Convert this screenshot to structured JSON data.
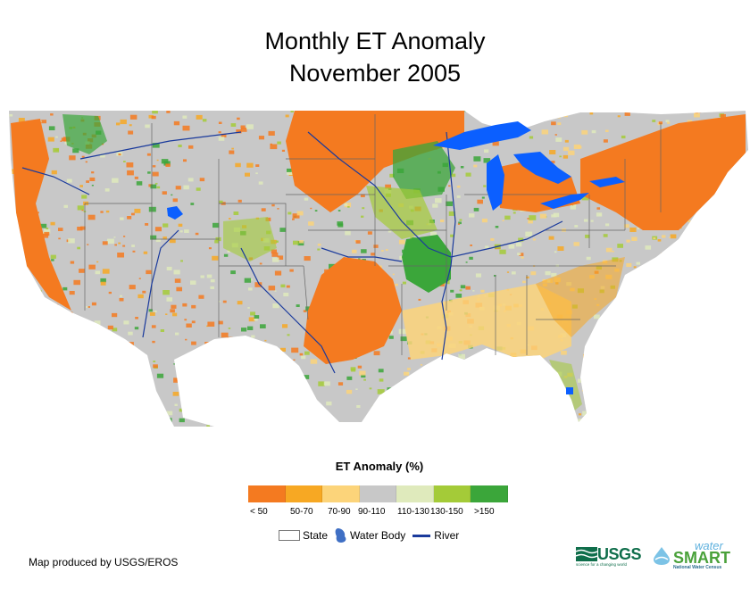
{
  "title": {
    "line1": "Monthly ET Anomaly",
    "line2": "November 2005"
  },
  "legend": {
    "title": "ET Anomaly (%)",
    "classes": [
      {
        "label": "< 50",
        "color": "#f47a20"
      },
      {
        "label": "50-70",
        "color": "#f7a823"
      },
      {
        "label": "70-90",
        "color": "#fcd47a"
      },
      {
        "label": "90-110",
        "color": "#c8c8c8"
      },
      {
        "label": "110-130",
        "color": "#dfeabc"
      },
      {
        "label": "130-150",
        "color": "#a4cb38"
      },
      {
        "label": ">150",
        "color": "#3ba63a"
      }
    ],
    "keys": {
      "state": "State",
      "water_body": "Water Body",
      "river": "River"
    }
  },
  "colors": {
    "water": "#0b5fff",
    "river": "#1a3a9c",
    "state_line": "#666666"
  },
  "credit": "Map produced by USGS/EROS",
  "logos": {
    "usgs": "USGS",
    "usgs_tagline": "science for a changing world",
    "water": "water",
    "smart": "SMART",
    "smart_tagline": "National Water Census"
  }
}
